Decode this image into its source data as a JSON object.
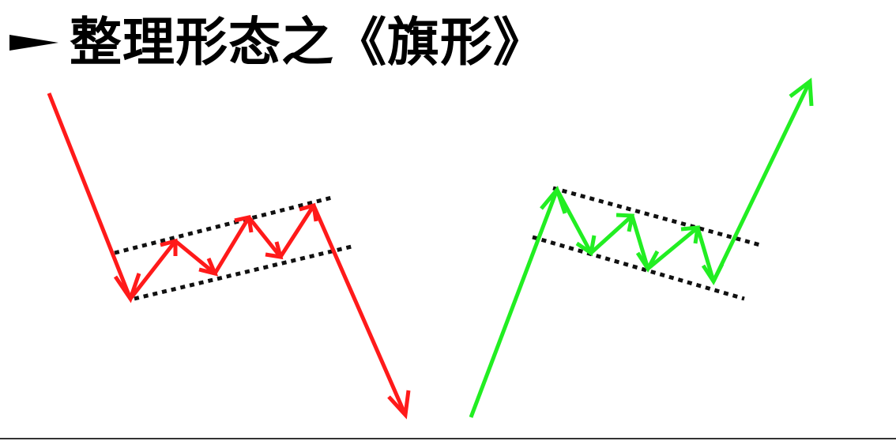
{
  "header": {
    "bullet_icon": "right-pointer-icon",
    "title": "整理形态之《旗形》"
  },
  "colors": {
    "bearish": "#ff1a1a",
    "bullish": "#22ee22",
    "channel": "#111111",
    "title": "#000000"
  }
}
